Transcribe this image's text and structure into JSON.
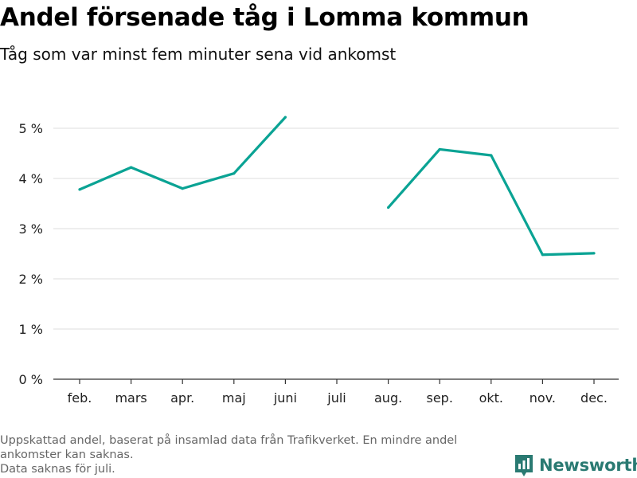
{
  "header": {
    "title": "Andel försenade tåg i Lomma kommun",
    "subtitle": "Tåg som var minst fem minuter sena vid ankomst"
  },
  "footnote": {
    "line1": "Uppskattad andel, baserat på insamlad data från Trafikverket. En mindre andel ankomster kan saknas.",
    "line2": "Data saknas för juli."
  },
  "brand": {
    "name": "Newsworthy",
    "icon": "newsworthy-logo-icon"
  },
  "colors": {
    "line": "#0aa394",
    "grid": "#dddddd",
    "axis": "#333333",
    "brand": "#2a7a72"
  },
  "chart_data": {
    "type": "line",
    "categories": [
      "feb.",
      "mars",
      "apr.",
      "maj",
      "juni",
      "juli",
      "aug.",
      "sep.",
      "okt.",
      "nov.",
      "dec."
    ],
    "series": [
      {
        "values": [
          3.78,
          4.22,
          3.8,
          4.1,
          5.22,
          null,
          3.42,
          4.58,
          4.46,
          2.48,
          2.51
        ]
      }
    ],
    "ylim": [
      0,
      5
    ],
    "yticks": [
      0,
      1,
      2,
      3,
      4,
      5
    ],
    "ytick_labels": [
      "0 %",
      "1 %",
      "2 %",
      "3 %",
      "4 %",
      "5 %"
    ],
    "grid": true
  }
}
